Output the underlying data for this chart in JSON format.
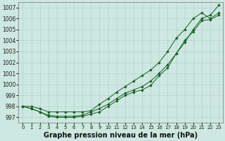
{
  "background_color": "#cce8e0",
  "grid_color": "#b0d5cc",
  "line_color": "#1a5c28",
  "marker_color": "#1a5c28",
  "xlabel": "Graphe pression niveau de la mer (hPa)",
  "xlabel_fontsize": 7.0,
  "ylim": [
    996.5,
    1007.5
  ],
  "xlim": [
    -0.5,
    23.5
  ],
  "yticks": [
    997,
    998,
    999,
    1000,
    1001,
    1002,
    1003,
    1004,
    1005,
    1006,
    1007
  ],
  "xticks": [
    0,
    1,
    2,
    3,
    4,
    5,
    6,
    7,
    8,
    9,
    10,
    11,
    12,
    13,
    14,
    15,
    16,
    17,
    18,
    19,
    20,
    21,
    22,
    23
  ],
  "series1": [
    998.0,
    997.8,
    997.5,
    997.1,
    997.0,
    997.0,
    997.0,
    997.1,
    997.3,
    997.5,
    998.0,
    998.5,
    999.0,
    999.3,
    999.5,
    999.9,
    1000.8,
    1001.5,
    1002.8,
    1003.8,
    1005.0,
    1006.0,
    1006.3,
    1007.2
  ],
  "series2": [
    998.0,
    997.8,
    997.5,
    997.2,
    997.1,
    997.1,
    997.1,
    997.2,
    997.5,
    997.8,
    998.2,
    998.7,
    999.2,
    999.5,
    999.8,
    1000.3,
    1001.0,
    1001.8,
    1002.8,
    1004.0,
    1004.8,
    1005.8,
    1005.9,
    1006.3
  ],
  "series3": [
    998.0,
    998.0,
    997.8,
    997.5,
    997.5,
    997.5,
    997.5,
    997.5,
    997.6,
    998.2,
    998.7,
    999.3,
    999.8,
    1000.3,
    1000.8,
    1001.3,
    1002.0,
    1003.0,
    1004.2,
    1005.0,
    1006.0,
    1006.5,
    1006.0,
    1006.5
  ]
}
